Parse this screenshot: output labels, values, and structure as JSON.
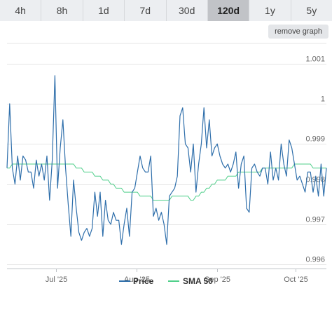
{
  "range_buttons": [
    {
      "label": "4h"
    },
    {
      "label": "8h"
    },
    {
      "label": "1d"
    },
    {
      "label": "7d"
    },
    {
      "label": "30d"
    },
    {
      "label": "120d",
      "active": true
    },
    {
      "label": "1y"
    },
    {
      "label": "5y"
    }
  ],
  "remove_graph_label": "remove graph",
  "colors": {
    "price": "#2f6fab",
    "sma": "#4fcf8a",
    "active_button": "#c1c3c7",
    "button": "#eceef1"
  },
  "chart_data": {
    "type": "line",
    "title": "",
    "xlabel": "",
    "ylabel": "",
    "x_start": "2025-06-12",
    "x_end": "2025-10-13",
    "ylim": [
      0.9959,
      1.0015
    ],
    "y_ticks": [
      "0.996",
      "0.997",
      "0.998",
      "0.999",
      "1",
      "1.001"
    ],
    "y_tick_values": [
      0.996,
      0.997,
      0.998,
      0.999,
      1.0,
      1.001
    ],
    "x_ticks": [
      "Jul '25",
      "Aug '25",
      "Sep '25",
      "Oct '25"
    ],
    "x_tick_dates": [
      "2025-07-01",
      "2025-08-01",
      "2025-09-01",
      "2025-10-01"
    ],
    "grid": "horizontal",
    "legend_position": "bottom-center",
    "series": [
      {
        "name": "Price",
        "values": [
          0.9984,
          1.0,
          0.9984,
          0.998,
          0.9987,
          0.9981,
          0.9987,
          0.9986,
          0.9983,
          0.9983,
          0.9979,
          0.9986,
          0.9982,
          0.9985,
          0.9981,
          0.9987,
          0.9976,
          0.9986,
          1.0007,
          0.9979,
          0.9989,
          0.9996,
          0.9984,
          0.9975,
          0.9967,
          0.9981,
          0.9974,
          0.9968,
          0.9966,
          0.9968,
          0.9969,
          0.9967,
          0.9969,
          0.9978,
          0.9972,
          0.9978,
          0.9967,
          0.9976,
          0.9971,
          0.997,
          0.9973,
          0.9971,
          0.9971,
          0.9965,
          0.997,
          0.9974,
          0.9967,
          0.9978,
          0.9979,
          0.9983,
          0.9987,
          0.9984,
          0.9983,
          0.9983,
          0.9987,
          0.9972,
          0.9974,
          0.9971,
          0.9973,
          0.997,
          0.9965,
          0.9977,
          0.9978,
          0.9979,
          0.9982,
          0.9997,
          0.9999,
          0.999,
          0.9989,
          0.9983,
          0.999,
          0.9978,
          0.9985,
          0.999,
          0.9999,
          0.9989,
          0.9996,
          0.9987,
          0.9989,
          0.999,
          0.9987,
          0.9985,
          0.9984,
          0.9985,
          0.9983,
          0.9985,
          0.9988,
          0.9979,
          0.9985,
          0.9987,
          0.9974,
          0.9973,
          0.9984,
          0.9985,
          0.9983,
          0.9982,
          0.9984,
          0.9984,
          0.998,
          0.9988,
          0.9981,
          0.9984,
          0.9981,
          0.999,
          0.9985,
          0.9982,
          0.9991,
          0.9989,
          0.9985,
          0.9981,
          0.9982,
          0.998,
          0.9978,
          0.9983,
          0.9983,
          0.9978,
          0.9982,
          0.9977,
          0.9985,
          0.9977,
          0.9984
        ]
      },
      {
        "name": "SMA 50",
        "values": [
          0.9984,
          0.9984,
          0.9985,
          0.9985,
          0.9985,
          0.9985,
          0.9985,
          0.9985,
          0.9985,
          0.9985,
          0.9985,
          0.9985,
          0.9985,
          0.9985,
          0.9985,
          0.9985,
          0.9985,
          0.9985,
          0.9985,
          0.9985,
          0.9985,
          0.9985,
          0.9985,
          0.9985,
          0.9985,
          0.9985,
          0.9984,
          0.9984,
          0.9984,
          0.9983,
          0.9983,
          0.9983,
          0.9983,
          0.9982,
          0.9982,
          0.9982,
          0.9981,
          0.9981,
          0.9981,
          0.998,
          0.998,
          0.9979,
          0.9979,
          0.9979,
          0.9978,
          0.9978,
          0.9978,
          0.9978,
          0.9978,
          0.9978,
          0.9977,
          0.9977,
          0.9977,
          0.9977,
          0.9977,
          0.9976,
          0.9976,
          0.9976,
          0.9976,
          0.9976,
          0.9976,
          0.9976,
          0.9977,
          0.9977,
          0.9977,
          0.9977,
          0.9977,
          0.9977,
          0.9977,
          0.9976,
          0.9976,
          0.9977,
          0.9977,
          0.9978,
          0.9978,
          0.9979,
          0.9979,
          0.998,
          0.998,
          0.9981,
          0.9981,
          0.9981,
          0.9981,
          0.9982,
          0.9982,
          0.9982,
          0.9982,
          0.9983,
          0.9983,
          0.9983,
          0.9983,
          0.9983,
          0.9983,
          0.9983,
          0.9983,
          0.9983,
          0.9984,
          0.9984,
          0.9984,
          0.9984,
          0.9984,
          0.9984,
          0.9984,
          0.9984,
          0.9984,
          0.9984,
          0.9984,
          0.9984,
          0.9985,
          0.9985,
          0.9985,
          0.9985,
          0.9985,
          0.9985,
          0.9985,
          0.9984,
          0.9984,
          0.9984,
          0.9984,
          0.9984,
          0.9984
        ]
      }
    ]
  }
}
